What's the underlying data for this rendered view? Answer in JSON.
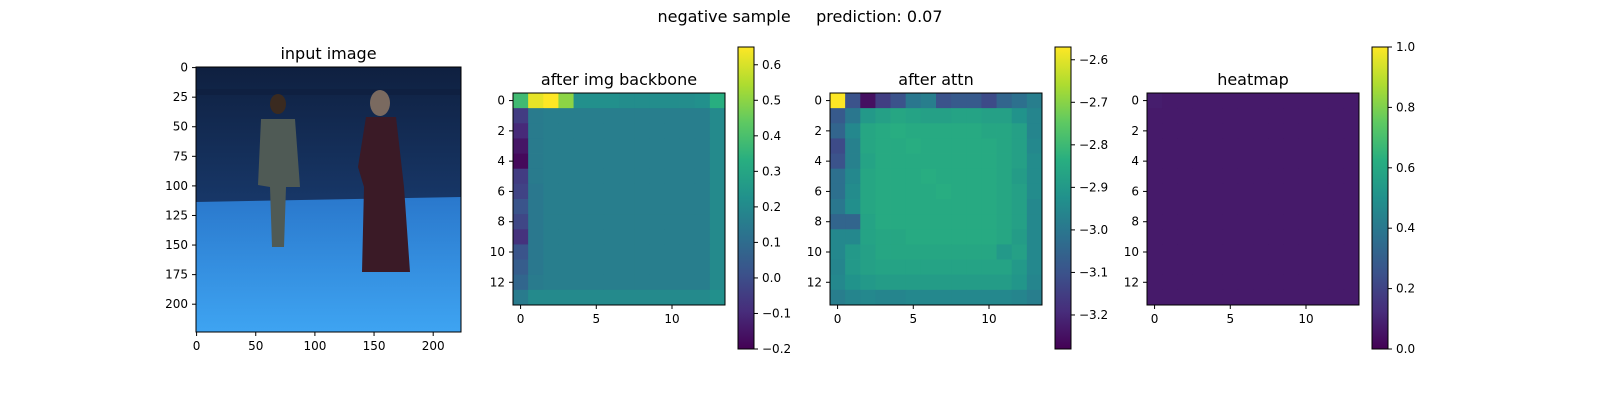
{
  "suptitle": "negative sample     prediction: 0.07",
  "chart_data": [
    {
      "type": "image",
      "title": "input image",
      "image_size": [
        224,
        224
      ],
      "xticks": [
        0,
        50,
        100,
        150,
        200
      ],
      "yticks": [
        0,
        25,
        50,
        75,
        100,
        125,
        150,
        175,
        200
      ],
      "scene_colors": {
        "backdrop_top": "#0f2040",
        "backdrop_mid": "#1f4d8e",
        "floor_near": "#3ea4f2",
        "floor_far": "#2a78cc",
        "person_left": "#4f5a55",
        "person_right_dress": "#3a1a26",
        "hair": "#3a2a20",
        "skin": "#7a6a60"
      }
    },
    {
      "type": "heatmap",
      "title": "after img backbone",
      "colormap": "viridis",
      "vmin": -0.2,
      "vmax": 0.65,
      "xticks": [
        0,
        5,
        10
      ],
      "yticks": [
        0,
        2,
        4,
        6,
        8,
        10,
        12
      ],
      "colorbar_ticks": [
        0.6,
        0.5,
        0.4,
        0.3,
        0.2,
        0.1,
        0.0,
        -0.1,
        -0.2
      ],
      "colorbar_labels": [
        "0.6",
        "0.5",
        "0.4",
        "0.3",
        "0.2",
        "0.1",
        "0.0",
        "−0.1",
        "−0.2"
      ],
      "values": [
        [
          0.38,
          0.62,
          0.65,
          0.5,
          0.22,
          0.22,
          0.22,
          0.21,
          0.21,
          0.21,
          0.21,
          0.21,
          0.22,
          0.33
        ],
        [
          -0.05,
          0.15,
          0.16,
          0.16,
          0.16,
          0.16,
          0.16,
          0.16,
          0.16,
          0.16,
          0.16,
          0.16,
          0.16,
          0.2
        ],
        [
          -0.1,
          0.15,
          0.16,
          0.16,
          0.16,
          0.16,
          0.16,
          0.16,
          0.16,
          0.16,
          0.16,
          0.16,
          0.16,
          0.2
        ],
        [
          -0.15,
          0.15,
          0.16,
          0.16,
          0.16,
          0.16,
          0.16,
          0.16,
          0.16,
          0.16,
          0.16,
          0.16,
          0.16,
          0.2
        ],
        [
          -0.18,
          0.15,
          0.16,
          0.16,
          0.16,
          0.16,
          0.16,
          0.16,
          0.16,
          0.16,
          0.16,
          0.16,
          0.16,
          0.2
        ],
        [
          -0.05,
          0.15,
          0.16,
          0.16,
          0.16,
          0.16,
          0.16,
          0.16,
          0.16,
          0.16,
          0.16,
          0.16,
          0.16,
          0.2
        ],
        [
          -0.03,
          0.14,
          0.16,
          0.16,
          0.16,
          0.16,
          0.16,
          0.16,
          0.16,
          0.16,
          0.16,
          0.16,
          0.16,
          0.2
        ],
        [
          0.02,
          0.14,
          0.16,
          0.16,
          0.16,
          0.16,
          0.16,
          0.16,
          0.16,
          0.16,
          0.16,
          0.16,
          0.16,
          0.2
        ],
        [
          -0.02,
          0.14,
          0.16,
          0.16,
          0.16,
          0.16,
          0.16,
          0.16,
          0.16,
          0.16,
          0.16,
          0.16,
          0.16,
          0.2
        ],
        [
          -0.08,
          0.14,
          0.16,
          0.16,
          0.16,
          0.16,
          0.16,
          0.16,
          0.16,
          0.16,
          0.16,
          0.16,
          0.16,
          0.2
        ],
        [
          0.02,
          0.14,
          0.16,
          0.16,
          0.16,
          0.16,
          0.16,
          0.16,
          0.16,
          0.16,
          0.16,
          0.16,
          0.16,
          0.2
        ],
        [
          0.05,
          0.14,
          0.16,
          0.16,
          0.16,
          0.16,
          0.16,
          0.16,
          0.16,
          0.16,
          0.16,
          0.16,
          0.16,
          0.2
        ],
        [
          0.08,
          0.15,
          0.16,
          0.16,
          0.16,
          0.16,
          0.16,
          0.16,
          0.16,
          0.16,
          0.16,
          0.16,
          0.16,
          0.2
        ],
        [
          0.15,
          0.2,
          0.2,
          0.2,
          0.2,
          0.2,
          0.2,
          0.2,
          0.2,
          0.2,
          0.2,
          0.2,
          0.2,
          0.22
        ]
      ]
    },
    {
      "type": "heatmap",
      "title": "after attn",
      "colormap": "viridis",
      "vmin": -3.28,
      "vmax": -2.57,
      "xticks": [
        0,
        5,
        10
      ],
      "yticks": [
        0,
        2,
        4,
        6,
        8,
        10,
        12
      ],
      "colorbar_ticks": [
        -2.6,
        -2.7,
        -2.8,
        -2.9,
        -3.0,
        -3.1,
        -3.2
      ],
      "colorbar_labels": [
        "−2.6",
        "−2.7",
        "−2.8",
        "−2.9",
        "−3.0",
        "−3.1",
        "−3.2"
      ],
      "values": [
        [
          -2.57,
          -3.1,
          -3.25,
          -3.15,
          -3.1,
          -3.0,
          -2.98,
          -3.1,
          -3.08,
          -3.08,
          -3.12,
          -3.05,
          -3.02,
          -2.98
        ],
        [
          -3.08,
          -3.0,
          -2.9,
          -2.88,
          -2.86,
          -2.87,
          -2.88,
          -2.88,
          -2.87,
          -2.87,
          -2.88,
          -2.88,
          -2.92,
          -2.96
        ],
        [
          -3.05,
          -2.95,
          -2.86,
          -2.85,
          -2.84,
          -2.85,
          -2.85,
          -2.85,
          -2.85,
          -2.85,
          -2.86,
          -2.86,
          -2.88,
          -2.96
        ],
        [
          -3.12,
          -2.97,
          -2.86,
          -2.85,
          -2.85,
          -2.84,
          -2.85,
          -2.85,
          -2.85,
          -2.85,
          -2.85,
          -2.86,
          -2.88,
          -2.95
        ],
        [
          -3.1,
          -2.97,
          -2.87,
          -2.85,
          -2.85,
          -2.85,
          -2.85,
          -2.85,
          -2.85,
          -2.85,
          -2.85,
          -2.86,
          -2.88,
          -2.94
        ],
        [
          -3.02,
          -2.95,
          -2.86,
          -2.85,
          -2.85,
          -2.85,
          -2.84,
          -2.85,
          -2.85,
          -2.85,
          -2.85,
          -2.86,
          -2.89,
          -2.94
        ],
        [
          -3.02,
          -2.94,
          -2.86,
          -2.85,
          -2.85,
          -2.85,
          -2.85,
          -2.84,
          -2.85,
          -2.85,
          -2.85,
          -2.86,
          -2.88,
          -2.94
        ],
        [
          -3.0,
          -2.93,
          -2.86,
          -2.85,
          -2.85,
          -2.85,
          -2.85,
          -2.85,
          -2.85,
          -2.85,
          -2.85,
          -2.86,
          -2.88,
          -2.95
        ],
        [
          -3.05,
          -3.05,
          -2.87,
          -2.85,
          -2.85,
          -2.85,
          -2.85,
          -2.85,
          -2.85,
          -2.85,
          -2.85,
          -2.86,
          -2.88,
          -2.95
        ],
        [
          -2.95,
          -2.95,
          -2.87,
          -2.86,
          -2.86,
          -2.85,
          -2.85,
          -2.85,
          -2.85,
          -2.85,
          -2.85,
          -2.86,
          -2.89,
          -2.95
        ],
        [
          -2.95,
          -2.9,
          -2.88,
          -2.86,
          -2.86,
          -2.86,
          -2.86,
          -2.86,
          -2.86,
          -2.86,
          -2.86,
          -2.9,
          -2.88,
          -2.95
        ],
        [
          -2.96,
          -2.9,
          -2.88,
          -2.87,
          -2.87,
          -2.87,
          -2.87,
          -2.87,
          -2.87,
          -2.87,
          -2.87,
          -2.87,
          -2.9,
          -2.95
        ],
        [
          -2.95,
          -2.92,
          -2.9,
          -2.89,
          -2.89,
          -2.89,
          -2.89,
          -2.89,
          -2.89,
          -2.89,
          -2.89,
          -2.89,
          -2.91,
          -2.96
        ],
        [
          -2.98,
          -2.96,
          -2.95,
          -2.96,
          -2.96,
          -2.95,
          -2.95,
          -2.95,
          -2.95,
          -2.95,
          -2.95,
          -2.95,
          -2.96,
          -2.98
        ]
      ]
    },
    {
      "type": "heatmap",
      "title": "heatmap",
      "colormap": "viridis",
      "vmin": 0.0,
      "vmax": 1.0,
      "xticks": [
        0,
        5,
        10
      ],
      "yticks": [
        0,
        2,
        4,
        6,
        8,
        10,
        12
      ],
      "colorbar_ticks": [
        1.0,
        0.8,
        0.6,
        0.4,
        0.2,
        0.0
      ],
      "colorbar_labels": [
        "1.0",
        "0.8",
        "0.6",
        "0.4",
        "0.2",
        "0.0"
      ],
      "values": [
        [
          0.08,
          0.07,
          0.07,
          0.07,
          0.07,
          0.07,
          0.07,
          0.07,
          0.07,
          0.07,
          0.07,
          0.07,
          0.07,
          0.07
        ],
        [
          0.07,
          0.07,
          0.07,
          0.07,
          0.07,
          0.07,
          0.07,
          0.07,
          0.07,
          0.07,
          0.07,
          0.07,
          0.07,
          0.07
        ],
        [
          0.07,
          0.07,
          0.07,
          0.07,
          0.07,
          0.07,
          0.07,
          0.07,
          0.07,
          0.07,
          0.07,
          0.07,
          0.07,
          0.07
        ],
        [
          0.07,
          0.07,
          0.07,
          0.07,
          0.07,
          0.07,
          0.07,
          0.07,
          0.07,
          0.07,
          0.07,
          0.07,
          0.07,
          0.07
        ],
        [
          0.07,
          0.07,
          0.07,
          0.07,
          0.07,
          0.07,
          0.07,
          0.07,
          0.07,
          0.07,
          0.07,
          0.07,
          0.07,
          0.07
        ],
        [
          0.07,
          0.07,
          0.07,
          0.07,
          0.07,
          0.07,
          0.07,
          0.07,
          0.07,
          0.07,
          0.07,
          0.07,
          0.07,
          0.07
        ],
        [
          0.07,
          0.07,
          0.07,
          0.07,
          0.07,
          0.07,
          0.07,
          0.07,
          0.07,
          0.07,
          0.07,
          0.07,
          0.07,
          0.07
        ],
        [
          0.07,
          0.07,
          0.07,
          0.07,
          0.07,
          0.07,
          0.07,
          0.07,
          0.07,
          0.07,
          0.07,
          0.07,
          0.07,
          0.07
        ],
        [
          0.07,
          0.07,
          0.07,
          0.07,
          0.07,
          0.07,
          0.07,
          0.07,
          0.07,
          0.07,
          0.07,
          0.07,
          0.07,
          0.07
        ],
        [
          0.07,
          0.07,
          0.07,
          0.07,
          0.07,
          0.07,
          0.07,
          0.07,
          0.07,
          0.07,
          0.07,
          0.07,
          0.07,
          0.07
        ],
        [
          0.07,
          0.07,
          0.07,
          0.07,
          0.07,
          0.07,
          0.07,
          0.07,
          0.07,
          0.07,
          0.07,
          0.07,
          0.07,
          0.07
        ],
        [
          0.07,
          0.07,
          0.07,
          0.07,
          0.07,
          0.07,
          0.07,
          0.07,
          0.07,
          0.07,
          0.07,
          0.07,
          0.07,
          0.07
        ],
        [
          0.07,
          0.07,
          0.07,
          0.07,
          0.07,
          0.07,
          0.07,
          0.07,
          0.07,
          0.07,
          0.07,
          0.07,
          0.07,
          0.07
        ],
        [
          0.07,
          0.07,
          0.07,
          0.07,
          0.07,
          0.07,
          0.07,
          0.07,
          0.07,
          0.07,
          0.07,
          0.07,
          0.07,
          0.07
        ]
      ]
    }
  ]
}
